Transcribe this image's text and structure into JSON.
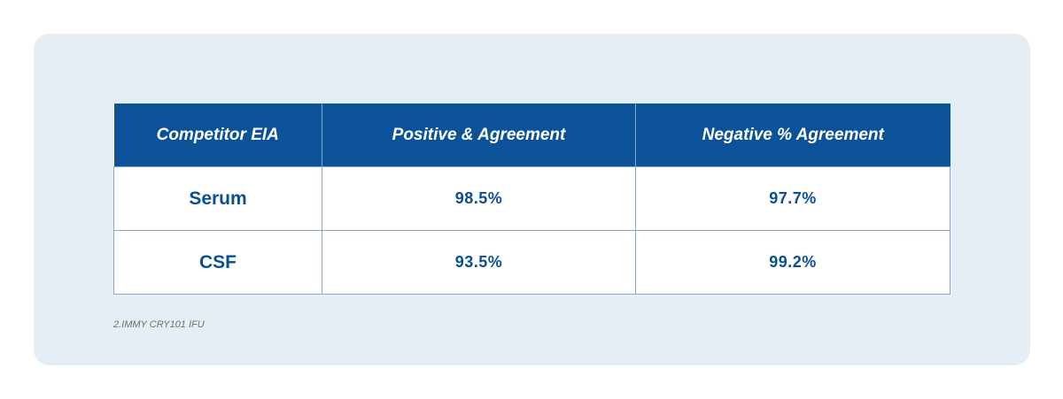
{
  "table": {
    "headers": [
      "Competitor EIA",
      "Positive & Agreement",
      "Negative % Agreement"
    ],
    "rows": [
      {
        "label": "Serum",
        "positive": "98.5%",
        "negative": "97.7%"
      },
      {
        "label": "CSF",
        "positive": "93.5%",
        "negative": "99.2%"
      }
    ]
  },
  "footnote": "2.IMMY CRY101 IFU",
  "colors": {
    "header_bg": "#0b5298",
    "header_text": "#ffffff",
    "cell_text": "#0b4f93",
    "panel_bg": "#e5edf5",
    "border": "#8aa8c8"
  }
}
